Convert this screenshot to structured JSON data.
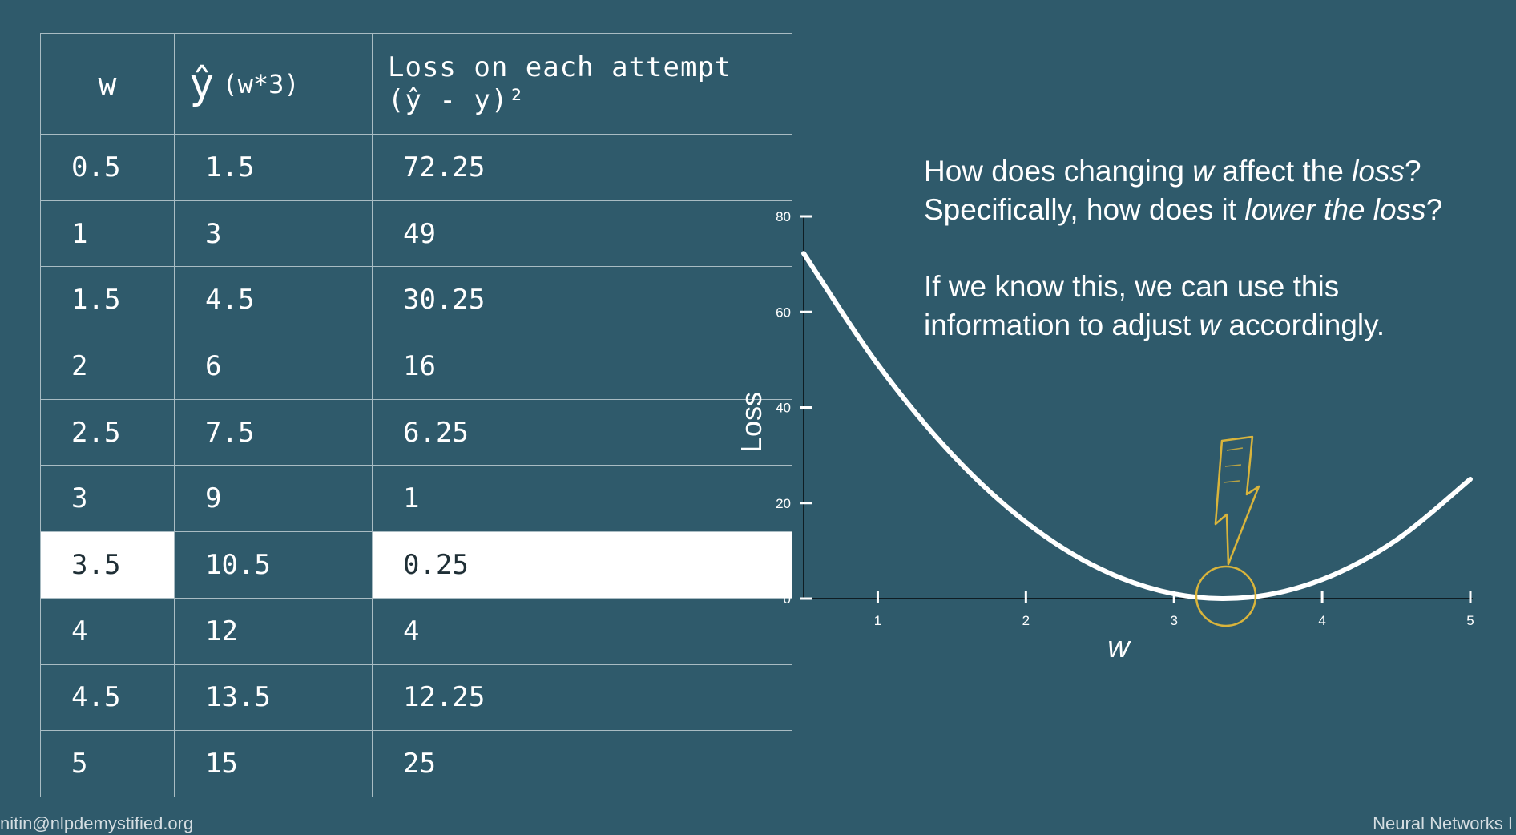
{
  "table": {
    "headers": {
      "w": "w",
      "yhat_symbol": "ŷ",
      "yhat_note": "(w*3)",
      "loss_line1": "Loss on each attempt",
      "loss_line2": "(ŷ - y)²"
    },
    "rows": [
      {
        "w": "0.5",
        "yhat": "1.5",
        "loss": "72.25"
      },
      {
        "w": "1",
        "yhat": "3",
        "loss": "49"
      },
      {
        "w": "1.5",
        "yhat": "4.5",
        "loss": "30.25"
      },
      {
        "w": "2",
        "yhat": "6",
        "loss": "16"
      },
      {
        "w": "2.5",
        "yhat": "7.5",
        "loss": "6.25"
      },
      {
        "w": "3",
        "yhat": "9",
        "loss": "1"
      },
      {
        "w": "3.5",
        "yhat": "10.5",
        "loss": "0.25"
      },
      {
        "w": "4",
        "yhat": "12",
        "loss": "4"
      },
      {
        "w": "4.5",
        "yhat": "13.5",
        "loss": "12.25"
      },
      {
        "w": "5",
        "yhat": "15",
        "loss": "25"
      }
    ],
    "highlighted_row_w": "3.5"
  },
  "annotation": {
    "q1_a": "How does changing ",
    "q1_w": "w",
    "q1_b": " affect the ",
    "q1_loss": "loss",
    "q1_c": "?",
    "q2_a": "Specifically, how does it ",
    "q2_em": "lower the loss",
    "q2_b": "?",
    "p2_l1": "If we know this, we can use this",
    "p2_l2_a": "information to adjust ",
    "p2_l2_w": "w",
    "p2_l2_b": " accordingly."
  },
  "chart_data": {
    "type": "line",
    "xlabel": "w",
    "ylabel": "Loss",
    "xlim": [
      0.5,
      5
    ],
    "ylim": [
      0,
      80
    ],
    "xticks": [
      1,
      2,
      3,
      4,
      5
    ],
    "yticks": [
      0,
      20,
      40,
      60,
      80
    ],
    "series": [
      {
        "x": [
          0.5,
          1,
          1.5,
          2,
          2.5,
          3,
          3.5,
          4,
          4.5,
          5
        ],
        "y": [
          72.25,
          49,
          30.25,
          16,
          6.25,
          1,
          0.25,
          4,
          12.25,
          25
        ],
        "color": "#ffffff"
      }
    ],
    "marker": {
      "x": 3.35,
      "y": 0,
      "color": "#d9b43b",
      "shape": "circle"
    },
    "arrow_color": "#d9b43b"
  },
  "footer": {
    "left": "nitin@nlpdemystified.org",
    "right": "Neural Networks I"
  }
}
